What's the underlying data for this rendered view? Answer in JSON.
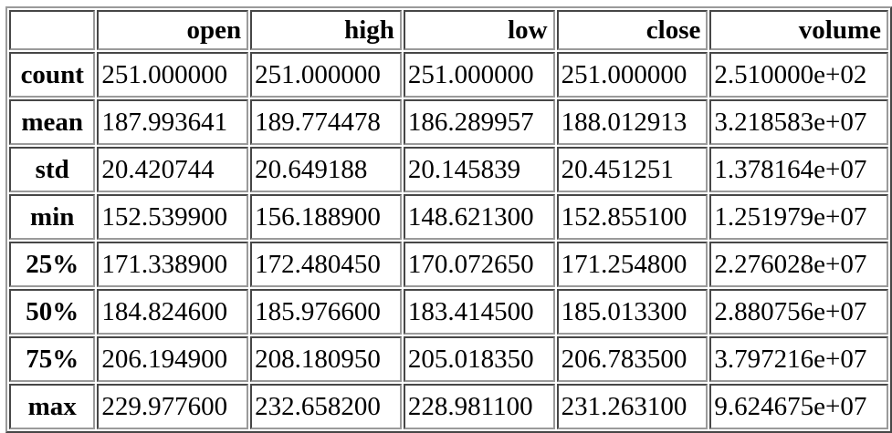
{
  "table": {
    "columns": [
      "open",
      "high",
      "low",
      "close",
      "volume"
    ],
    "rows": [
      {
        "label": "count",
        "values": [
          "251.000000",
          "251.000000",
          "251.000000",
          "251.000000",
          "2.510000e+02"
        ]
      },
      {
        "label": "mean",
        "values": [
          "187.993641",
          "189.774478",
          "186.289957",
          "188.012913",
          "3.218583e+07"
        ]
      },
      {
        "label": "std",
        "values": [
          "20.420744",
          "20.649188",
          "20.145839",
          "20.451251",
          "1.378164e+07"
        ]
      },
      {
        "label": "min",
        "values": [
          "152.539900",
          "156.188900",
          "148.621300",
          "152.855100",
          "1.251979e+07"
        ]
      },
      {
        "label": "25%",
        "values": [
          "171.338900",
          "172.480450",
          "170.072650",
          "171.254800",
          "2.276028e+07"
        ]
      },
      {
        "label": "50%",
        "values": [
          "184.824600",
          "185.976600",
          "183.414500",
          "185.013300",
          "2.880756e+07"
        ]
      },
      {
        "label": "75%",
        "values": [
          "206.194900",
          "208.180950",
          "205.018350",
          "206.783500",
          "3.797216e+07"
        ]
      },
      {
        "label": "max",
        "values": [
          "229.977600",
          "232.658200",
          "228.981100",
          "231.263100",
          "9.624675e+07"
        ]
      }
    ]
  }
}
